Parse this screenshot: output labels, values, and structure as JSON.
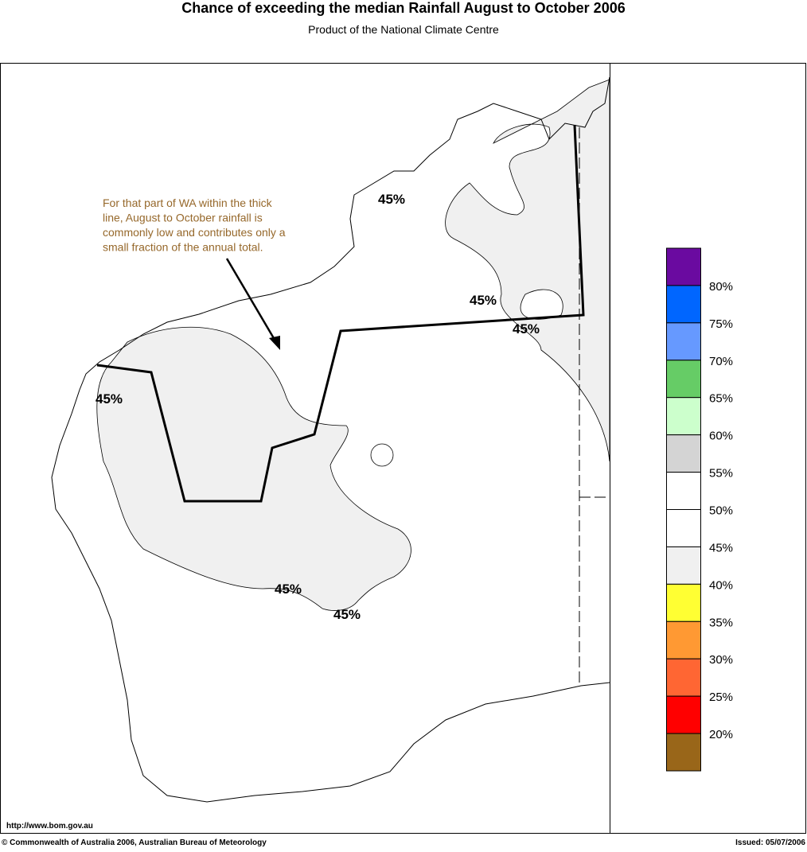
{
  "header": {
    "title": "Chance of exceeding the median Rainfall August to October 2006",
    "subtitle": "Product of the National Climate Centre"
  },
  "annotation": {
    "lines": [
      "For that part of WA within the thick",
      "line, August to October rainfall is",
      "commonly low and contributes only a",
      "small fraction of the annual total."
    ]
  },
  "contour_labels": [
    "45%",
    "45%",
    "45%",
    "45%",
    "45%",
    "45%"
  ],
  "legend": {
    "colors": [
      "#6a0aa0",
      "#0066ff",
      "#6699ff",
      "#66cc66",
      "#ccffcc",
      "#d4d4d4",
      "#ffffff",
      "#ffffff",
      "#f0f0f0",
      "#ffff33",
      "#ff9933",
      "#ff6633",
      "#ff0000",
      "#996619"
    ],
    "labels": [
      "80%",
      "75%",
      "70%",
      "65%",
      "60%",
      "55%",
      "50%",
      "45%",
      "40%",
      "35%",
      "30%",
      "25%",
      "20%"
    ]
  },
  "footer": {
    "url": "http://www.bom.gov.au",
    "copyright": "© Commonwealth of Australia 2006, Australian Bureau of Meteorology",
    "issued": "Issued: 05/07/2006"
  }
}
